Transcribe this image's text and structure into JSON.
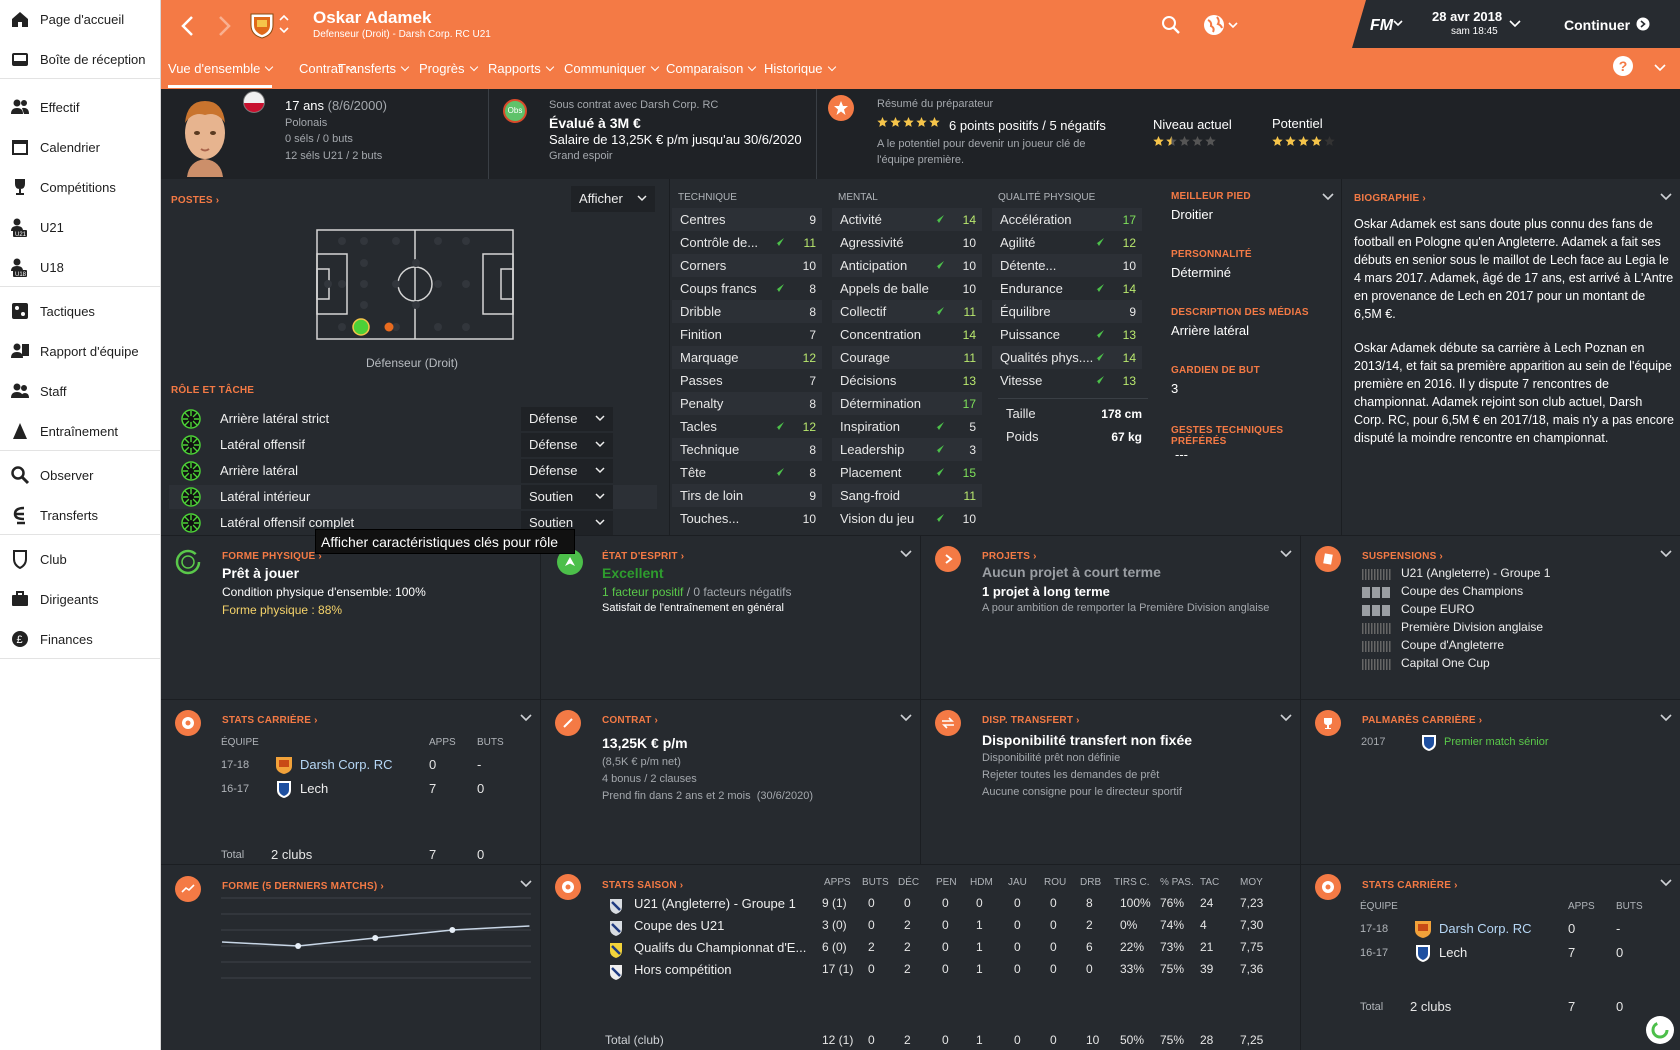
{
  "sidebar": {
    "items": [
      {
        "label": "Page d'accueil",
        "icon": "home-icon"
      },
      {
        "label": "Boîte de réception",
        "icon": "inbox-icon"
      },
      {
        "label": "Effectif",
        "icon": "squad-icon"
      },
      {
        "label": "Calendrier",
        "icon": "calendar-icon"
      },
      {
        "label": "Compétitions",
        "icon": "trophy-icon"
      },
      {
        "label": "U21",
        "icon": "u21-icon"
      },
      {
        "label": "U18",
        "icon": "u18-icon"
      },
      {
        "label": "Tactiques",
        "icon": "tactics-icon"
      },
      {
        "label": "Rapport d'équipe",
        "icon": "team-report-icon"
      },
      {
        "label": "Staff",
        "icon": "staff-icon"
      },
      {
        "label": "Entraînement",
        "icon": "training-icon"
      },
      {
        "label": "Observer",
        "icon": "scout-icon"
      },
      {
        "label": "Transferts",
        "icon": "transfers-icon"
      },
      {
        "label": "Club",
        "icon": "club-icon"
      },
      {
        "label": "Dirigeants",
        "icon": "board-icon"
      },
      {
        "label": "Finances",
        "icon": "finances-icon"
      }
    ]
  },
  "header": {
    "player_name": "Oskar Adamek",
    "subtitle": "Defenseur (Droit) - Darsh Corp. RC U21",
    "logo": "FM",
    "date": "28 avr 2018",
    "time": "sam 18:45",
    "continue": "Continuer",
    "tabs": [
      "Vue d'ensemble",
      "Contrat",
      "Transferts",
      "Progrès",
      "Rapports",
      "Communiquer",
      "Comparaison",
      "Historique"
    ],
    "accent": "#f47a45"
  },
  "summary": {
    "age": "17 ans",
    "birth": "(8/6/2000)",
    "nationality": "Polonais",
    "caps": "0 séls / 0 buts",
    "caps_u21": "12 séls U21 / 2 buts",
    "obs": "Obs",
    "contract_with": "Sous contrat avec Darsh Corp. RC",
    "value": "Évalué à 3M €",
    "wage": "Salaire de 13,25K € p/m jusqu'au 30/6/2020",
    "status": "Grand espoir",
    "coach_title": "Résumé du préparateur",
    "coach_points": "6 points positifs / 5 négatifs",
    "coach_desc1": "A le potentiel pour devenir un joueur clé de",
    "coach_desc2": "l'équipe première.",
    "current_label": "Niveau actuel",
    "current_stars": 1.5,
    "potential_label": "Potentiel",
    "potential_stars": 4
  },
  "positions": {
    "title": "POSTES",
    "show": "Afficher",
    "position_label": "Défenseur (Droit)",
    "role_title": "RÔLE ET TÂCHE",
    "roles": [
      {
        "name": "Arrière latéral strict",
        "duty": "Défense"
      },
      {
        "name": "Latéral offensif",
        "duty": "Défense"
      },
      {
        "name": "Arrière latéral",
        "duty": "Défense"
      },
      {
        "name": "Latéral intérieur",
        "duty": "Soutien"
      },
      {
        "name": "Latéral offensif complet",
        "duty": "Soutien"
      }
    ],
    "tooltip": "Afficher caractéristiques clés pour rôle"
  },
  "attributes": {
    "technical_title": "TECHNIQUE",
    "technical": [
      {
        "n": "Centres",
        "v": "9",
        "up": false
      },
      {
        "n": "Contrôle de...",
        "v": "11",
        "up": true
      },
      {
        "n": "Corners",
        "v": "10",
        "up": false
      },
      {
        "n": "Coups francs",
        "v": "8",
        "up": true
      },
      {
        "n": "Dribble",
        "v": "8",
        "up": false
      },
      {
        "n": "Finition",
        "v": "7",
        "up": false
      },
      {
        "n": "Marquage",
        "v": "12",
        "up": false
      },
      {
        "n": "Passes",
        "v": "7",
        "up": false
      },
      {
        "n": "Penalty",
        "v": "8",
        "up": false
      },
      {
        "n": "Tacles",
        "v": "12",
        "up": true
      },
      {
        "n": "Technique",
        "v": "8",
        "up": false
      },
      {
        "n": "Tête",
        "v": "8",
        "up": true
      },
      {
        "n": "Tirs de loin",
        "v": "9",
        "up": false
      },
      {
        "n": "Touches...",
        "v": "10",
        "up": false
      }
    ],
    "mental_title": "MENTAL",
    "mental": [
      {
        "n": "Activité",
        "v": "14",
        "up": true
      },
      {
        "n": "Agressivité",
        "v": "10",
        "up": false
      },
      {
        "n": "Anticipation",
        "v": "10",
        "up": true
      },
      {
        "n": "Appels de balle",
        "v": "10",
        "up": false
      },
      {
        "n": "Collectif",
        "v": "11",
        "up": true
      },
      {
        "n": "Concentration",
        "v": "14",
        "up": false
      },
      {
        "n": "Courage",
        "v": "11",
        "up": false
      },
      {
        "n": "Décisions",
        "v": "13",
        "up": false
      },
      {
        "n": "Détermination",
        "v": "17",
        "up": false
      },
      {
        "n": "Inspiration",
        "v": "5",
        "up": true
      },
      {
        "n": "Leadership",
        "v": "3",
        "up": true
      },
      {
        "n": "Placement",
        "v": "15",
        "up": true
      },
      {
        "n": "Sang-froid",
        "v": "11",
        "up": false
      },
      {
        "n": "Vision du jeu",
        "v": "10",
        "up": true
      }
    ],
    "physical_title": "QUALITÉ PHYSIQUE",
    "physical": [
      {
        "n": "Accélération",
        "v": "17",
        "up": false
      },
      {
        "n": "Agilité",
        "v": "12",
        "up": true
      },
      {
        "n": "Détente...",
        "v": "10",
        "up": false
      },
      {
        "n": "Endurance",
        "v": "14",
        "up": true
      },
      {
        "n": "Équilibre",
        "v": "9",
        "up": false
      },
      {
        "n": "Puissance",
        "v": "13",
        "up": true
      },
      {
        "n": "Qualités phys....",
        "v": "14",
        "up": true
      },
      {
        "n": "Vitesse",
        "v": "13",
        "up": true
      }
    ],
    "height_label": "Taille",
    "height": "178 cm",
    "weight_label": "Poids",
    "weight": "67 kg"
  },
  "info": {
    "foot_title": "MEILLEUR PIED",
    "foot": "Droitier",
    "personality_title": "PERSONNALITÉ",
    "personality": "Déterminé",
    "media_title": "DESCRIPTION DES MÉDIAS",
    "media": "Arrière latéral",
    "gk_title": "GARDIEN DE BUT",
    "gk": "3",
    "moves_title": "GESTES TECHNIQUES PRÉFÉRÉS",
    "moves": "---"
  },
  "bio": {
    "title": "BIOGRAPHIE",
    "p1": "Oskar Adamek est sans doute plus connu des fans de football en Pologne qu'en Angleterre. Adamek a fait ses débuts en senior sous le maillot de Lech face au Legia le 4 mars 2017. Adamek, âgé de 17 ans, est arrivé à L'Antre en provenance de Lech en 2017 pour un montant de 6,5M €.",
    "p2": "Oskar Adamek débute sa carrière à Lech Poznan en 2013/14, et fait sa première apparition au sein de l'équipe première en 2016. Il y dispute 7 rencontres de championnat. Adamek rejoint son club actuel, Darsh Corp. RC, pour 6,5M € en 2017/18, mais n'y a pas encore disputé la moindre rencontre en championnat."
  },
  "fitness": {
    "title": "FORME PHYSIQUE",
    "status": "Prêt à jouer",
    "condition": "Condition physique d'ensemble: 100%",
    "sharpness": "Forme physique : 88%"
  },
  "morale": {
    "title": "ÉTAT D'ESPRIT",
    "status": "Excellent",
    "positive": "1 facteur positif",
    "sep": "/",
    "negative": "0 facteurs négatifs",
    "note": "Satisfait de l'entraînement en général"
  },
  "projects": {
    "title": "PROJETS",
    "short": "Aucun projet à court terme",
    "long": "1 projet à long terme",
    "desc": "A pour ambition de remporter la Première Division anglaise"
  },
  "suspensions": {
    "title": "SUSPENSIONS",
    "items": [
      "U21 (Angleterre) - Groupe 1",
      "Coupe des Champions",
      "Coupe EURO",
      "Première Division anglaise",
      "Coupe d'Angleterre",
      "Capital One Cup"
    ]
  },
  "career": {
    "title": "STATS CARRIÈRE",
    "col_team": "ÉQUIPE",
    "col_apps": "APPS",
    "col_goals": "BUTS",
    "rows": [
      {
        "season": "17-18",
        "team": "Darsh Corp. RC",
        "apps": "0",
        "goals": "-"
      },
      {
        "season": "16-17",
        "team": "Lech",
        "apps": "7",
        "goals": "0"
      }
    ],
    "total_label": "Total",
    "total_clubs": "2 clubs",
    "total_apps": "7",
    "total_goals": "0"
  },
  "contract": {
    "title": "CONTRAT",
    "wage": "13,25K € p/m",
    "net": "(8,5K € p/m net)",
    "bonus": "4 bonus / 2 clauses",
    "ends": "Prend fin dans 2 ans et 2 mois",
    "ends_date": "(30/6/2020)"
  },
  "transfer": {
    "title": "DISP. TRANSFERT",
    "status": "Disponibilité transfert non fixée",
    "l1": "Disponibilité prêt non définie",
    "l2": "Rejeter toutes les demandes de prêt",
    "l3": "Aucune consigne pour le directeur sportif"
  },
  "honours": {
    "title": "PALMARÈS CARRIÈRE",
    "year": "2017",
    "item": "Premier match sénior"
  },
  "form": {
    "title": "FORME (5 DERNIERS MATCHS)",
    "values": [
      6.9,
      6.8,
      7.0,
      7.2,
      7.3
    ]
  },
  "season": {
    "title": "STATS SAISON",
    "cols": [
      "APPS",
      "BUTS",
      "DÉC",
      "PEN",
      "HDM",
      "JAU",
      "ROU",
      "DRB",
      "TIRS C.",
      "% PAS.",
      "TAC",
      "MOY"
    ],
    "rows": [
      {
        "comp": "U21 (Angleterre) - Groupe 1",
        "v": [
          "9 (1)",
          "0",
          "0",
          "0",
          "0",
          "0",
          "0",
          "8",
          "100%",
          "76%",
          "24",
          "7,23"
        ]
      },
      {
        "comp": "Coupe des U21",
        "v": [
          "3 (0)",
          "0",
          "2",
          "0",
          "1",
          "0",
          "0",
          "2",
          "0%",
          "74%",
          "4",
          "7,30"
        ]
      },
      {
        "comp": "Qualifs du Championnat d'E...",
        "v": [
          "6 (0)",
          "2",
          "2",
          "0",
          "1",
          "0",
          "0",
          "6",
          "22%",
          "73%",
          "21",
          "7,75"
        ]
      },
      {
        "comp": "Hors compétition",
        "v": [
          "17 (1)",
          "0",
          "2",
          "0",
          "1",
          "0",
          "0",
          "0",
          "33%",
          "75%",
          "39",
          "7,36"
        ]
      }
    ],
    "total": {
      "comp": "Total (club)",
      "v": [
        "12 (1)",
        "0",
        "2",
        "0",
        "1",
        "0",
        "0",
        "10",
        "50%",
        "75%",
        "28",
        "7,25"
      ]
    }
  }
}
